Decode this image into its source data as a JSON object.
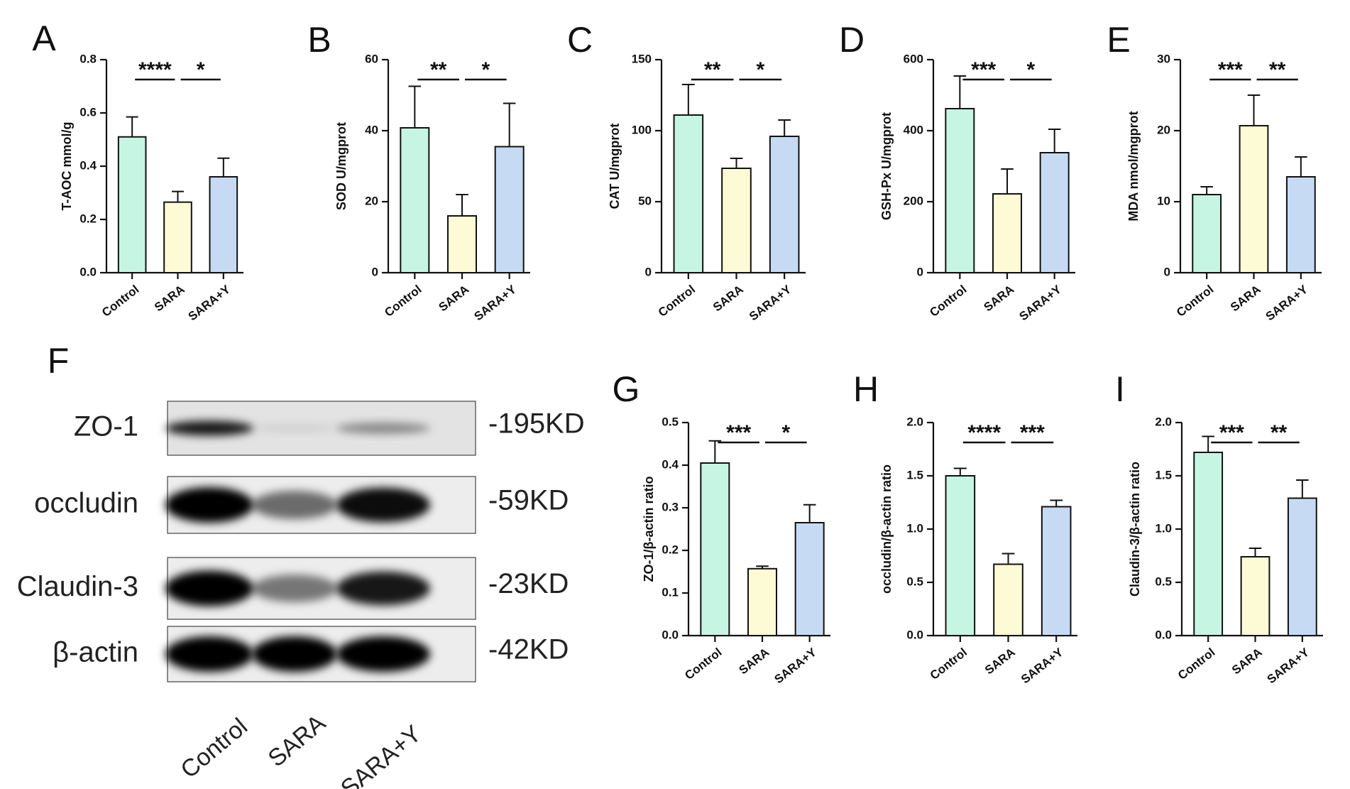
{
  "chart_data": [
    {
      "panel": "A",
      "type": "bar",
      "categories": [
        "Control",
        "SARA",
        "SARA+Y"
      ],
      "values": [
        0.51,
        0.265,
        0.36
      ],
      "errors": [
        0.075,
        0.04,
        0.07
      ],
      "ylabel": "T-AOC mmol/g",
      "ylim": [
        0,
        0.8
      ],
      "yticks": [
        0.0,
        0.2,
        0.4,
        0.6,
        0.8
      ],
      "ytick_labels": [
        "0.0",
        "0.2",
        "0.4",
        "0.6",
        "0.8"
      ],
      "significance": [
        {
          "between": [
            0,
            1
          ],
          "label": "****"
        },
        {
          "between": [
            1,
            2
          ],
          "label": "*"
        }
      ]
    },
    {
      "panel": "B",
      "type": "bar",
      "categories": [
        "Control",
        "SARA",
        "SARA+Y"
      ],
      "values": [
        40.8,
        16.0,
        35.5
      ],
      "errors": [
        11.7,
        6.0,
        12.2
      ],
      "ylabel": "SOD U/mgprot",
      "ylim": [
        0,
        60
      ],
      "yticks": [
        0,
        20,
        40,
        60
      ],
      "ytick_labels": [
        "0",
        "20",
        "40",
        "60"
      ],
      "significance": [
        {
          "between": [
            0,
            1
          ],
          "label": "**"
        },
        {
          "between": [
            1,
            2
          ],
          "label": "*"
        }
      ]
    },
    {
      "panel": "C",
      "type": "bar",
      "categories": [
        "Control",
        "SARA",
        "SARA+Y"
      ],
      "values": [
        111,
        73.5,
        96
      ],
      "errors": [
        21.5,
        7,
        11.5
      ],
      "ylabel": "CAT U/mgprot",
      "ylim": [
        0,
        150
      ],
      "yticks": [
        0,
        50,
        100,
        150
      ],
      "ytick_labels": [
        "0",
        "50",
        "100",
        "150"
      ],
      "significance": [
        {
          "between": [
            0,
            1
          ],
          "label": "**"
        },
        {
          "between": [
            1,
            2
          ],
          "label": "*"
        }
      ]
    },
    {
      "panel": "D",
      "type": "bar",
      "categories": [
        "Control",
        "SARA",
        "SARA+Y"
      ],
      "values": [
        462,
        222,
        338
      ],
      "errors": [
        92,
        70,
        66
      ],
      "ylabel": "GSH-Px U/mgprot",
      "ylim": [
        0,
        600
      ],
      "yticks": [
        0,
        200,
        400,
        600
      ],
      "ytick_labels": [
        "0",
        "200",
        "400",
        "600"
      ],
      "significance": [
        {
          "between": [
            0,
            1
          ],
          "label": "***"
        },
        {
          "between": [
            1,
            2
          ],
          "label": "*"
        }
      ]
    },
    {
      "panel": "E",
      "type": "bar",
      "categories": [
        "Control",
        "SARA",
        "SARA+Y"
      ],
      "values": [
        11.0,
        20.7,
        13.5
      ],
      "errors": [
        1.1,
        4.3,
        2.8
      ],
      "ylabel": "MDA nmol/mgprot",
      "ylim": [
        0,
        30
      ],
      "yticks": [
        0,
        10,
        20,
        30
      ],
      "ytick_labels": [
        "0",
        "10",
        "20",
        "30"
      ],
      "significance": [
        {
          "between": [
            0,
            1
          ],
          "label": "***"
        },
        {
          "between": [
            1,
            2
          ],
          "label": "**"
        }
      ]
    },
    {
      "panel": "G",
      "type": "bar",
      "categories": [
        "Control",
        "SARA",
        "SARA+Y"
      ],
      "values": [
        0.405,
        0.157,
        0.265
      ],
      "errors": [
        0.052,
        0.006,
        0.042
      ],
      "ylabel": "ZO-1/β-actin  ratio",
      "ylim": [
        0,
        0.5
      ],
      "yticks": [
        0.0,
        0.1,
        0.2,
        0.3,
        0.4,
        0.5
      ],
      "ytick_labels": [
        "0.0",
        "0.1",
        "0.2",
        "0.3",
        "0.4",
        "0.5"
      ],
      "significance": [
        {
          "between": [
            0,
            1
          ],
          "label": "***"
        },
        {
          "between": [
            1,
            2
          ],
          "label": "*"
        }
      ]
    },
    {
      "panel": "H",
      "type": "bar",
      "categories": [
        "Control",
        "SARA",
        "SARA+Y"
      ],
      "values": [
        1.5,
        0.67,
        1.21
      ],
      "errors": [
        0.07,
        0.1,
        0.06
      ],
      "ylabel": "occludin/β-actin  ratio",
      "ylim": [
        0,
        2.0
      ],
      "yticks": [
        0.0,
        0.5,
        1.0,
        1.5,
        2.0
      ],
      "ytick_labels": [
        "0.0",
        "0.5",
        "1.0",
        "1.5",
        "2.0"
      ],
      "significance": [
        {
          "between": [
            0,
            1
          ],
          "label": "****"
        },
        {
          "between": [
            1,
            2
          ],
          "label": "***"
        }
      ]
    },
    {
      "panel": "I",
      "type": "bar",
      "categories": [
        "Control",
        "SARA",
        "SARA+Y"
      ],
      "values": [
        1.72,
        0.74,
        1.29
      ],
      "errors": [
        0.15,
        0.08,
        0.17
      ],
      "ylabel": "Claudin-3/β-actin  ratio",
      "ylim": [
        0,
        2.0
      ],
      "yticks": [
        0.0,
        0.5,
        1.0,
        1.5,
        2.0
      ],
      "ytick_labels": [
        "0.0",
        "0.5",
        "1.0",
        "1.5",
        "2.0"
      ],
      "significance": [
        {
          "between": [
            0,
            1
          ],
          "label": "***"
        },
        {
          "between": [
            1,
            2
          ],
          "label": "**"
        }
      ]
    }
  ],
  "bar_colors": [
    "#c6f5e3",
    "#fdfbd6",
    "#c6dbf3"
  ],
  "western_blot": {
    "panel": "F",
    "rows": [
      {
        "protein": "ZO-1",
        "size": "-195KD",
        "intensity": [
          0.9,
          0.05,
          0.4
        ]
      },
      {
        "protein": "occludin",
        "size": "-59KD",
        "intensity": [
          1.0,
          0.55,
          0.95
        ]
      },
      {
        "protein": "Claudin-3",
        "size": "-23KD",
        "intensity": [
          1.0,
          0.5,
          0.9
        ]
      },
      {
        "protein": "β-actin",
        "size": "-42KD",
        "intensity": [
          1.0,
          1.0,
          1.0
        ]
      }
    ],
    "lanes": [
      "Control",
      "SARA",
      "SARA+Y"
    ]
  }
}
